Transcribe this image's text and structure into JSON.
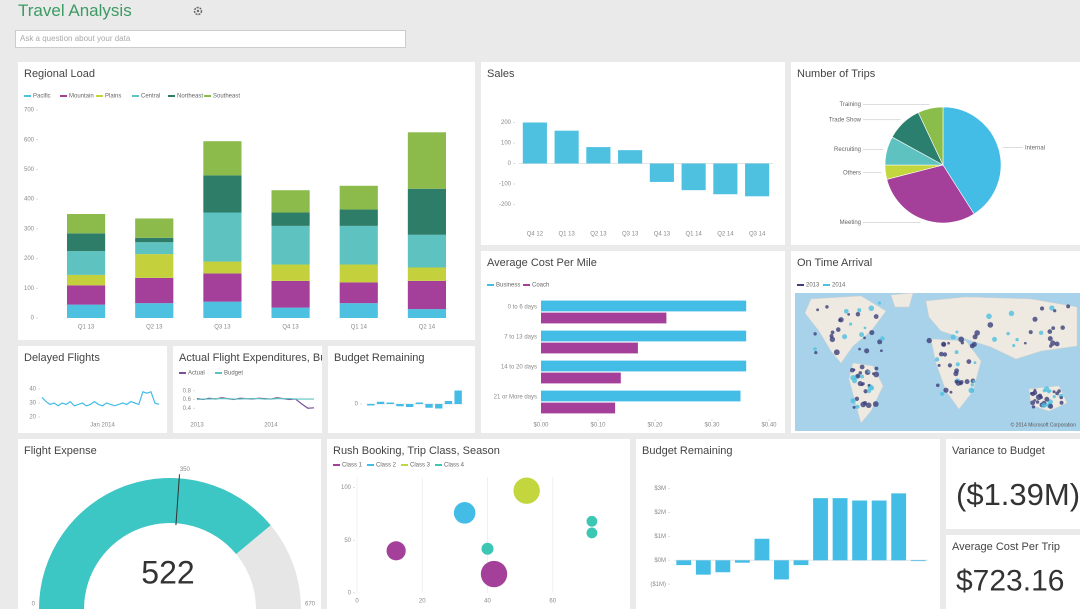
{
  "header": {
    "title": "Travel Analysis",
    "search_placeholder": "Ask a question about your data"
  },
  "tiles": [
    {
      "title": "Regional Load",
      "chart": {
        "type": "stacked",
        "categories": [
          "Q1 13",
          "Q2 13",
          "Q3 13",
          "Q4 13",
          "Q1 14",
          "Q2 14"
        ],
        "series": [
          {
            "name": "Pacific",
            "color": "#4ec1e0",
            "values": [
              45,
              50,
              55,
              35,
              50,
              30
            ]
          },
          {
            "name": "Mountain",
            "color": "#a4409a",
            "values": [
              65,
              85,
              95,
              90,
              70,
              95
            ]
          },
          {
            "name": "Plains",
            "color": "#c5d13c",
            "values": [
              35,
              80,
              40,
              55,
              60,
              45
            ]
          },
          {
            "name": "Central",
            "color": "#5ec3c0",
            "values": [
              80,
              40,
              165,
              130,
              130,
              110
            ]
          },
          {
            "name": "Northeast",
            "color": "#2e7d69",
            "values": [
              60,
              15,
              125,
              45,
              55,
              155
            ]
          },
          {
            "name": "Southeast",
            "color": "#8cbb4c",
            "values": [
              65,
              65,
              115,
              75,
              80,
              190
            ]
          }
        ],
        "ylim": [
          0,
          700
        ],
        "yticks": [
          0,
          100,
          200,
          300,
          400,
          500,
          600,
          700
        ]
      }
    },
    {
      "title": "Sales",
      "chart": {
        "type": "column",
        "color": "#4ec1e0",
        "categories": [
          "Q4 12",
          "Q1 13",
          "Q2 13",
          "Q3 13",
          "Q4 13",
          "Q1 14",
          "Q2 14",
          "Q3 14"
        ],
        "values": [
          200,
          160,
          80,
          65,
          -90,
          -130,
          -150,
          -160
        ],
        "ylim": [
          -300,
          300
        ],
        "yticks": [
          -200,
          -100,
          0,
          100,
          200
        ]
      }
    },
    {
      "title": "Number of Trips",
      "chart": {
        "type": "pie",
        "categories": [
          "Internal",
          "Meeting",
          "Others",
          "Recruiting",
          "Trade Show",
          "Training"
        ],
        "values": [
          41,
          30,
          4,
          8,
          10,
          7
        ],
        "colors": [
          "#44bde6",
          "#a4409a",
          "#c4d63d",
          "#5ec3c0",
          "#2b7f6e",
          "#8bbd4a"
        ]
      }
    },
    {
      "title": "Average Cost Per Mile",
      "chart": {
        "type": "hbar",
        "categories": [
          "0 to 6 days",
          "7 to 13 days",
          "14 to 20 days",
          "21 or More days"
        ],
        "series": [
          {
            "name": "Business",
            "color": "#44bde6",
            "values": [
              0.36,
              0.36,
              0.36,
              0.35
            ]
          },
          {
            "name": "Coach",
            "color": "#a4409a",
            "values": [
              0.22,
              0.17,
              0.14,
              0.13
            ]
          }
        ],
        "xlim": [
          0,
          0.4
        ],
        "xticks": [
          {
            "value": 0,
            "label": "$0.00"
          },
          {
            "value": 0.1,
            "label": "$0.10"
          },
          {
            "value": 0.2,
            "label": "$0.20"
          },
          {
            "value": 0.3,
            "label": "$0.30"
          },
          {
            "value": 0.4,
            "label": "$0.40"
          }
        ]
      }
    },
    {
      "title": "On Time Arrival",
      "chart": {
        "type": "map",
        "series": [
          {
            "name": "2013",
            "color": "#3b3f7a"
          },
          {
            "name": "2014",
            "color": "#4ec1e0"
          }
        ],
        "attribution": "© 2014 Microsoft Corporation"
      }
    },
    {
      "title": "Delayed Flights",
      "chart": {
        "type": "line",
        "categories": [
          null,
          null,
          null,
          null,
          null,
          null,
          null,
          null,
          null,
          null,
          null,
          null,
          null,
          null,
          null,
          "Jan 2014",
          null,
          null,
          null,
          null,
          null,
          null,
          null,
          null,
          null,
          null,
          null,
          null,
          null,
          null
        ],
        "series": [
          {
            "name": "Delayed",
            "color": "#44bde6",
            "values": [
              34,
              31,
              29,
              30,
              28,
              30,
              29,
              31,
              28,
              29,
              30,
              28,
              29,
              31,
              29,
              28,
              30,
              29,
              28,
              29,
              30,
              29,
              31,
              30,
              29,
              38,
              37,
              38,
              30,
              29
            ]
          }
        ],
        "ylim": [
          20,
          45
        ],
        "yticks": [
          20,
          30,
          40
        ]
      }
    },
    {
      "title": "Actual Flight Expenditures, Bu...",
      "chart": {
        "type": "line",
        "categories": [
          "2013",
          null,
          null,
          null,
          null,
          null,
          null,
          null,
          null,
          null,
          null,
          null,
          "2014",
          null,
          null,
          null,
          null,
          null,
          null,
          null
        ],
        "series": [
          {
            "name": "Actual",
            "color": "#7a4f9c",
            "values": [
              0.62,
              0.6,
              0.63,
              0.61,
              0.64,
              0.62,
              0.6,
              0.63,
              0.62,
              0.61,
              0.63,
              0.62,
              0.61,
              0.64,
              0.62,
              0.6,
              0.61,
              0.5,
              0.4,
              0.41
            ]
          },
          {
            "name": "Budget",
            "color": "#5ec3c0",
            "values": [
              0.6,
              0.61,
              0.61,
              0.62,
              0.62,
              0.62,
              0.61,
              0.61,
              0.62,
              0.62,
              0.62,
              0.61,
              0.61,
              0.62,
              0.62,
              0.62,
              0.61,
              0.61,
              0.61,
              0.61
            ]
          }
        ],
        "ylim": [
          0.2,
          1
        ],
        "yticks": [
          0.4,
          0.6,
          0.8
        ]
      }
    },
    {
      "title": "Budget Remaining",
      "chart": {
        "type": "column",
        "color": "#44bde6",
        "categories": [
          null,
          null,
          null,
          null,
          null,
          null,
          null,
          null,
          null,
          null
        ],
        "values": [
          -0.1,
          0.15,
          0.1,
          -0.15,
          -0.2,
          0.1,
          -0.25,
          -0.3,
          0.2,
          0.9
        ],
        "ylim": [
          -0.6,
          1.2
        ],
        "yticks": [
          0
        ]
      }
    },
    {
      "title": "Flight Expense",
      "chart": {
        "type": "gauge",
        "value": 522,
        "min": 0,
        "max": 670,
        "target": 350,
        "color": "#3cc6c4"
      }
    },
    {
      "title": "Rush Booking, Trip Class, Season",
      "chart": {
        "type": "scatter",
        "series": [
          {
            "name": "Class 1",
            "color": "#a4409a"
          },
          {
            "name": "Class 2",
            "color": "#44bde6"
          },
          {
            "name": "Class 3",
            "color": "#c4d63d"
          },
          {
            "name": "Class 4",
            "color": "#3cc6b4"
          }
        ],
        "points": {
          "x": [
            12,
            33,
            52,
            40,
            42,
            72,
            72
          ],
          "y": [
            40,
            76,
            97,
            42,
            18,
            68,
            57
          ],
          "size": [
            16,
            18,
            22,
            10,
            22,
            9,
            9
          ],
          "group": [
            0,
            1,
            2,
            3,
            0,
            3,
            3
          ]
        },
        "xlim": [
          0,
          80
        ],
        "ylim": [
          0,
          110
        ],
        "xticks": [
          0,
          20,
          40,
          60
        ],
        "yticks": [
          0,
          50,
          100
        ]
      }
    },
    {
      "title": "Budget Remaining",
      "chart": {
        "type": "column",
        "color": "#44bde6",
        "categories": [
          null,
          null,
          null,
          null,
          null,
          null,
          null,
          null,
          null,
          null,
          null,
          null,
          null
        ],
        "values": [
          -0.2,
          -0.6,
          -0.5,
          -0.1,
          0.9,
          -0.8,
          -0.2,
          2.6,
          2.6,
          2.5,
          2.5,
          2.8,
          0
        ],
        "ylim": [
          -1.2,
          3.4
        ],
        "yticks": [
          {
            "value": -1,
            "label": "($1M)"
          },
          {
            "value": 0,
            "label": "$0M"
          },
          {
            "value": 1,
            "label": "$1M"
          },
          {
            "value": 2,
            "label": "$2M"
          },
          {
            "value": 3,
            "label": "$3M"
          }
        ]
      }
    },
    {
      "title": "Variance to Budget",
      "chart": {
        "type": "card",
        "value": "($1.39M)"
      }
    },
    {
      "title": "Average Cost Per Trip",
      "chart": {
        "type": "card",
        "value": "$723.16"
      }
    }
  ]
}
